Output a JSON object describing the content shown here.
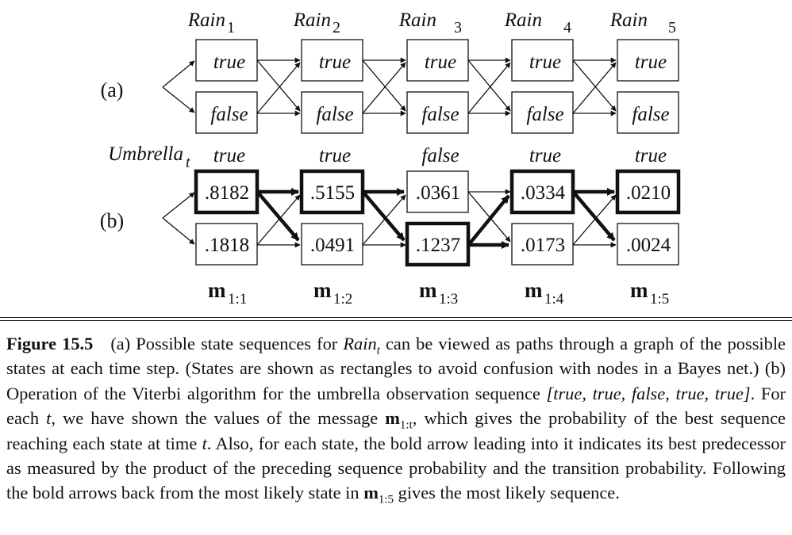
{
  "panel_a": {
    "label": "(a)",
    "column_headers": [
      {
        "base": "Rain",
        "sub": "1"
      },
      {
        "base": "Rain",
        "sub": "2"
      },
      {
        "base": "Rain",
        "sub": "3"
      },
      {
        "base": "Rain",
        "sub": "4"
      },
      {
        "base": "Rain",
        "sub": "5"
      }
    ],
    "state_labels": [
      "true",
      "false"
    ]
  },
  "panel_b": {
    "label": "(b)",
    "row_header": {
      "base": "Umbrella",
      "sub": "t"
    },
    "observations": [
      "true",
      "true",
      "false",
      "true",
      "true"
    ],
    "messages": [
      {
        "true": ".8182",
        "false": ".1818"
      },
      {
        "true": ".5155",
        "false": ".0491"
      },
      {
        "true": ".0361",
        "false": ".1237"
      },
      {
        "true": ".0334",
        "false": ".0173"
      },
      {
        "true": ".0210",
        "false": ".0024"
      }
    ],
    "most_likely_sequence": [
      "true",
      "true",
      "false",
      "true",
      "true"
    ],
    "best_predecessor": [
      {
        "true": "true",
        "false": "true"
      },
      {
        "true": "true",
        "false": "true"
      },
      {
        "true": "false",
        "false": "false"
      },
      {
        "true": "true",
        "false": "true"
      }
    ],
    "message_labels": [
      {
        "base": "m",
        "sub": "1:1"
      },
      {
        "base": "m",
        "sub": "1:2"
      },
      {
        "base": "m",
        "sub": "1:3"
      },
      {
        "base": "m",
        "sub": "1:4"
      },
      {
        "base": "m",
        "sub": "1:5"
      }
    ]
  },
  "caption": {
    "label": "Figure 15.5",
    "t1": "(a) Possible state sequences for ",
    "rain": "Rain",
    "rain_sub": "t",
    "t2": " can be viewed as paths through a graph of the possible states at each time step. (States are shown as rectangles to avoid confusion with nodes in a Bayes net.) (b) Operation of the Viterbi algorithm for the umbrella observation sequence ",
    "sequence": "[true, true, false, true, true]",
    "t3": ". For each ",
    "t_var": "t",
    "t4": ", we have shown the values of the message ",
    "m": "m",
    "m_sub_1t": "1:t",
    "t5": ", which gives the probability of the best sequence reaching each state at time ",
    "t_var2": "t",
    "t6": ". Also, for each state, the bold arrow leading into it indicates its best predecessor as measured by the product of the preceding sequence probability and the transition probability. Following the bold arrows back from the most likely state in ",
    "m_sub_15": "1:5",
    "t7": " gives the most likely sequence."
  }
}
